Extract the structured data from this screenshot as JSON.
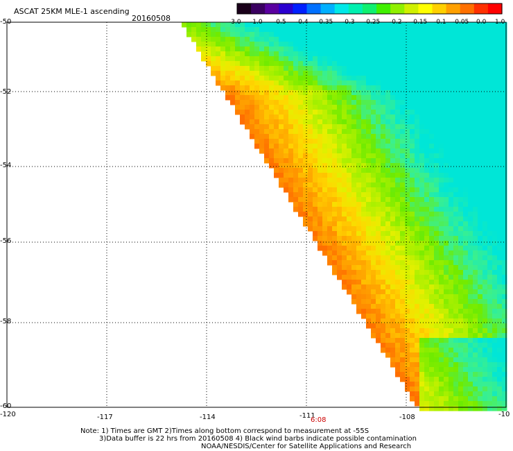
{
  "header": {
    "title": "ASCAT 25KM MLE-1 ascending",
    "date": "20160508"
  },
  "colorbar": {
    "labels": [
      "-3.0",
      "-1.0",
      "-0.5",
      "-0.4",
      "-0.35",
      "-0.3",
      "-0.25",
      "-0.2",
      "-0.15",
      "-0.1",
      "-0.05",
      "0.0",
      "1.0"
    ],
    "colors": [
      "#1a001a",
      "#3a0060",
      "#5a00a0",
      "#2a00d0",
      "#0020ff",
      "#0070ff",
      "#00b0ff",
      "#00e8e8",
      "#00f0b0",
      "#10f070",
      "#40f000",
      "#90f000",
      "#d0f000",
      "#ffff00",
      "#ffd000",
      "#ffa000",
      "#ff7000",
      "#ff3000",
      "#ff0000"
    ]
  },
  "map": {
    "lat_labels": [
      "-50",
      "-52",
      "-54",
      "-56",
      "-58",
      "-60"
    ],
    "lon_labels": [
      "-120",
      "-117",
      "-114",
      "-111",
      "-108",
      "-10"
    ],
    "time_label": "6:08",
    "time_color": "#cc0000"
  },
  "notes": {
    "line1": "Note: 1) Times are GMT 2)Times along bottom correspond to measurement at -55S",
    "line2": "3)Data buffer is 22 hrs from 20160508 4) Black wind barbs indicate possible contamination",
    "line3": "NOAA/NESDIS/Center for Satellite Applications and Research"
  }
}
